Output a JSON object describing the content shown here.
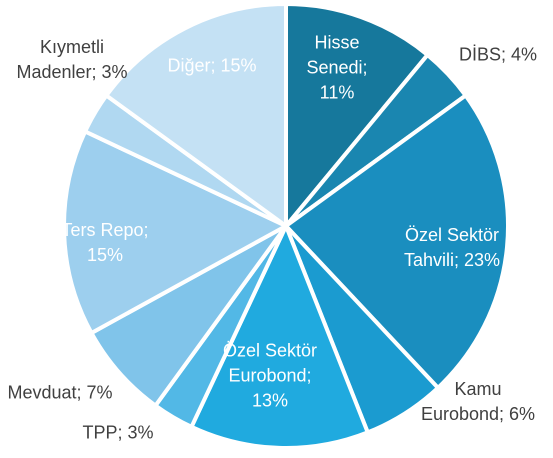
{
  "chart_data": {
    "type": "pie",
    "categories": [
      "Hisse Senedi;",
      "DİBS;",
      "Özel Sektör Tahvili;",
      "Kamu Eurobond;",
      "Özel Sektör Eurobond;",
      "TPP;",
      "Mevduat;",
      "Ters Repo;",
      "Kıymetli Madenler;",
      "Diğer;"
    ],
    "values": [
      11,
      4,
      23,
      6,
      13,
      3,
      7,
      15,
      3,
      15
    ],
    "value_labels": [
      "11%",
      "4%",
      "23%",
      "6%",
      "13%",
      "3%",
      "7%",
      "15%",
      "3%",
      "15%"
    ],
    "colors": [
      "#16789c",
      "#1a86b0",
      "#1a8ebf",
      "#1b9bd0",
      "#20aadf",
      "#52b8e6",
      "#80c4ea",
      "#9dcfee",
      "#b0d8f1",
      "#c4e1f4"
    ]
  }
}
